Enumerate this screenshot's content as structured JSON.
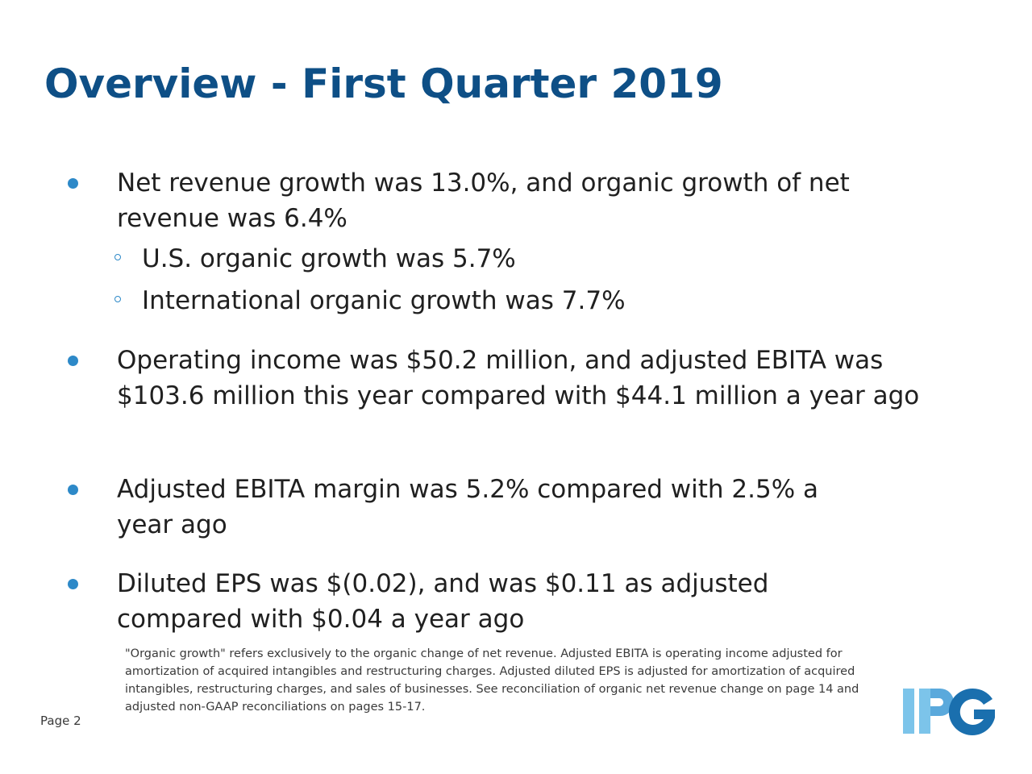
{
  "slide": {
    "title": "Overview - First Quarter 2019",
    "bullets": [
      {
        "text": "Net revenue growth was 13.0%, and organic growth of net revenue was 6.4%"
      },
      {
        "text": "Operating income was $50.2 million, and adjusted EBITA was $103.6 million this year compared with $44.1 million a year ago"
      },
      {
        "text": "Adjusted EBITA margin was 5.2% compared with 2.5% a year ago"
      },
      {
        "text": "Diluted EPS was $(0.02), and was $0.11 as adjusted compared with $0.04 a year ago"
      }
    ],
    "sub_bullets": [
      {
        "text": "U.S. organic growth was 5.7%"
      },
      {
        "text": "International organic growth was 7.7%"
      }
    ],
    "footnote": "\"Organic growth\" refers exclusively to the organic change of net revenue. Adjusted EBITA is operating income adjusted for amortization of acquired intangibles and restructuring charges. Adjusted diluted EPS is adjusted for amortization of acquired intangibles, restructuring charges, and sales of businesses. See reconciliation of organic net revenue change on page 14 and adjusted non-GAAP reconciliations on pages 15-17.",
    "page_label": "Page 2",
    "logo": {
      "name": "ipg-logo",
      "text": "IPG",
      "colors": {
        "light": "#7cc4ea",
        "mid": "#2d89c8",
        "dark": "#1a6fae"
      }
    },
    "colors": {
      "title": "#0e4f86",
      "bullet": "#2d89c8",
      "body_text": "#202020"
    }
  }
}
